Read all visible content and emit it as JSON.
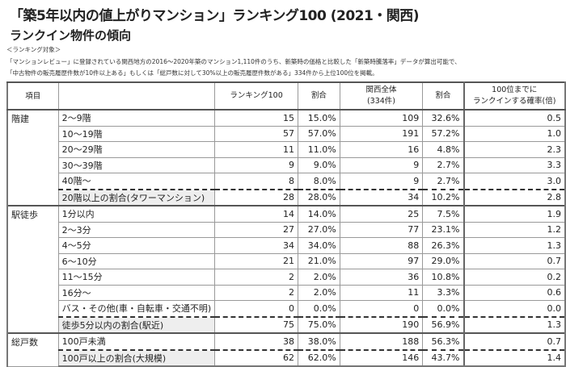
{
  "title": "「築5年以内の値上がりマンション」ランキング100 (2021・関西)",
  "subtitle": "ランクイン物件の傾向",
  "notes": [
    "＜ランキング対象＞",
    "「マンションレビュー」に登録されている関西地方の2016～2020年築のマンション1,110件のうち、新築時の価格と比較した「新築時騰落率」データが算出可能で、",
    "「中古物件の販売履歴件数が10件以上ある」もしくは「総戸数に対して30%以上の販売履歴件数がある」334件から上位100位を掲載。"
  ],
  "headers": {
    "item": "項目",
    "rank100": "ランキング100",
    "ratio1": "割合",
    "kansai1": "関西全体",
    "kansai2": "(334件)",
    "ratio2": "割合",
    "prob1": "100位までに",
    "prob2": "ランクインする確率(倍)"
  },
  "sections": [
    {
      "name": "階建",
      "rows": [
        [
          "2～9階",
          "15",
          "15.0%",
          "109",
          "32.6%",
          "0.5"
        ],
        [
          "10～19階",
          "57",
          "57.0%",
          "191",
          "57.2%",
          "1.0"
        ],
        [
          "20～29階",
          "11",
          "11.0%",
          "16",
          "4.8%",
          "2.3"
        ],
        [
          "30～39階",
          "9",
          "9.0%",
          "9",
          "2.7%",
          "3.3"
        ],
        [
          "40階～",
          "8",
          "8.0%",
          "9",
          "2.7%",
          "3.0"
        ]
      ],
      "summary": [
        "20階以上の割合(タワーマンション)",
        "28",
        "28.0%",
        "34",
        "10.2%",
        "2.8"
      ]
    },
    {
      "name": "駅徒歩",
      "rows": [
        [
          "1分以内",
          "14",
          "14.0%",
          "25",
          "7.5%",
          "1.9"
        ],
        [
          "2～3分",
          "27",
          "27.0%",
          "77",
          "23.1%",
          "1.2"
        ],
        [
          "4～5分",
          "34",
          "34.0%",
          "88",
          "26.3%",
          "1.3"
        ],
        [
          "6～10分",
          "21",
          "21.0%",
          "97",
          "29.0%",
          "0.7"
        ],
        [
          "11～15分",
          "2",
          "2.0%",
          "36",
          "10.8%",
          "0.2"
        ],
        [
          "16分～",
          "2",
          "2.0%",
          "11",
          "3.3%",
          "0.6"
        ],
        [
          "バス・その他(車・自転車・交通不明)",
          "0",
          "0.0%",
          "0",
          "0.0%",
          "0.0"
        ]
      ],
      "summary": [
        "徒歩5分以内の割合(駅近)",
        "75",
        "75.0%",
        "190",
        "56.9%",
        "1.3"
      ]
    },
    {
      "name": "総戸数",
      "rows": [
        [
          "100戸未満",
          "38",
          "38.0%",
          "188",
          "56.3%",
          "0.7"
        ]
      ],
      "summary": [
        "100戸以上の割合(大規模)",
        "62",
        "62.0%",
        "146",
        "43.7%",
        "1.4"
      ]
    }
  ]
}
